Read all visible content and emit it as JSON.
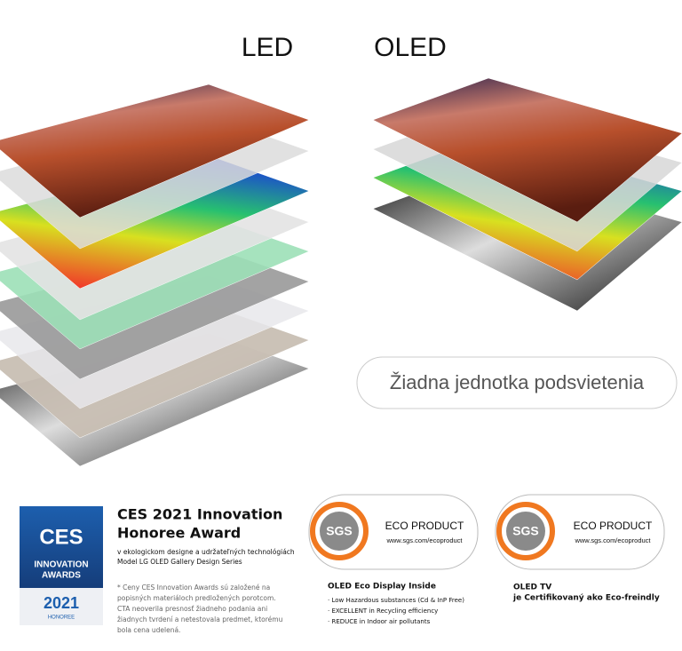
{
  "header": {
    "led": "LED",
    "oled": "OLED"
  },
  "callout": "Žiadna jednotka podsvietenia",
  "ces_badge": {
    "logo": "CES",
    "line1": "INNOVATION",
    "line2": "AWARDS",
    "year": "2021",
    "status": "HONOREE"
  },
  "ces_award": {
    "title_lines": [
      "CES 2021 Innovation",
      "Honoree Award"
    ],
    "description_lines": [
      "v ekologickom designe a udržateľných technológiách",
      "Model LG OLED Gallery Design Series"
    ],
    "footnote_lines": [
      "* Ceny CES Innovation Awards sú založené na",
      "popisných materiáloch predložených porotcom.",
      "CTA neoverila presnosť žiadneho podania ani",
      "žiadnych tvrdení a netestovala predmet, ktorému",
      "bola cena udelená."
    ]
  },
  "sgs_badges": [
    {
      "logo": "SGS",
      "label": "ECO PRODUCT",
      "url": "www.sgs.com/ecoproduct"
    },
    {
      "logo": "SGS",
      "label": "ECO PRODUCT",
      "url": "www.sgs.com/ecoproduct"
    }
  ],
  "eco_display": {
    "title": "OLED Eco Display Inside",
    "items": [
      "· Low Hazardous substances (Cd & InP Free)",
      "· EXCELLENT in Recycling efficiency",
      "· REDUCE in Indoor air pollutants"
    ]
  },
  "oled_tv": {
    "lines": [
      "OLED TV",
      "je Certifikovaný ako Eco-freindly"
    ]
  }
}
